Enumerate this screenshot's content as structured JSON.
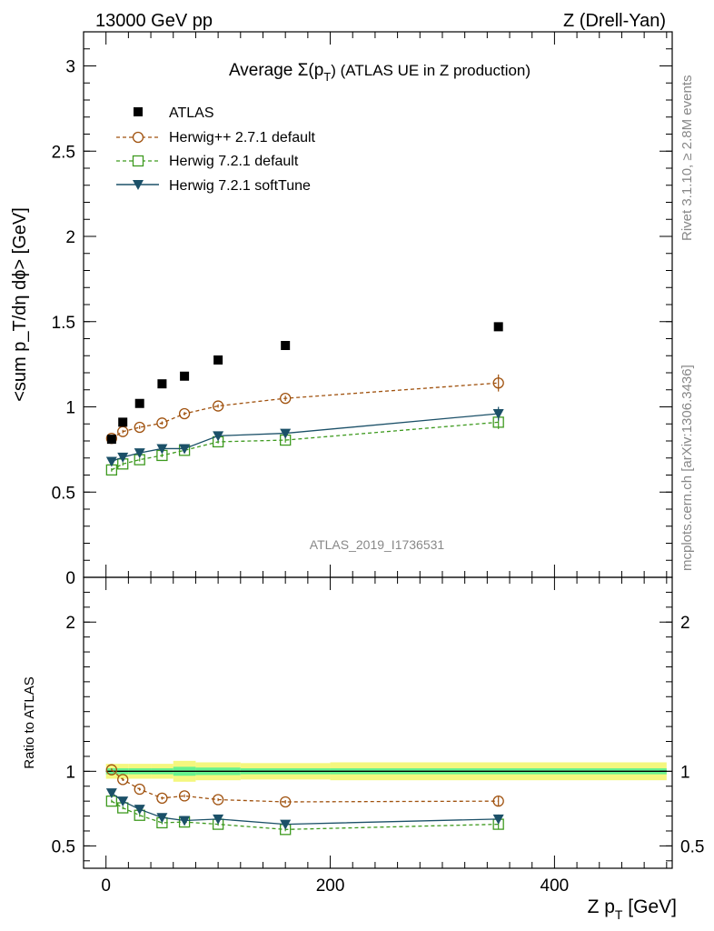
{
  "header": {
    "left": "13000 GeV pp",
    "right": "Z (Drell-Yan)"
  },
  "side_text": {
    "rivet": "Rivet 3.1.10, ≥ 2.8M events",
    "mcplots": "mcplots.cern.ch [arXiv:1306.3436]"
  },
  "colors": {
    "atlas": "#000000",
    "herwigpp": "#a0520f",
    "herwig721": "#3e9a1f",
    "softtune": "#1b5068",
    "band_inner": "#66f28f",
    "band_outer": "#f4f77e"
  },
  "chart_data": [
    {
      "type": "scatter",
      "panel": "main",
      "title": "Average Σ(p_T) (ATLAS UE in Z production)",
      "title_parts": {
        "lead": "Average ",
        "sigma": "Σ(p",
        "sub": "T",
        "tail": ") (ATLAS UE in Z production)"
      },
      "ylabel": "<sum p_T/dη dϕ> [GeV]",
      "watermark": "ATLAS_2019_I1736531",
      "xlim": [
        -20,
        505
      ],
      "ylim": [
        0,
        3.2
      ],
      "yticks": [
        0,
        0.5,
        1,
        1.5,
        2,
        2.5,
        3
      ],
      "x": [
        5,
        15,
        30,
        50,
        70,
        100,
        160,
        350
      ],
      "series": [
        {
          "name": "ATLAS",
          "style": "square",
          "values": [
            0.81,
            0.91,
            1.02,
            1.135,
            1.18,
            1.275,
            1.36,
            1.47
          ]
        },
        {
          "name": "Herwig++ 2.7.1 default",
          "style": "circle",
          "values": [
            0.815,
            0.855,
            0.88,
            0.905,
            0.96,
            1.005,
            1.05,
            1.14
          ],
          "err": [
            0.01,
            0.01,
            0.01,
            0.01,
            0.01,
            0.01,
            0.015,
            0.05
          ]
        },
        {
          "name": "Herwig 7.2.1 default",
          "style": "open-square",
          "values": [
            0.63,
            0.665,
            0.69,
            0.715,
            0.745,
            0.795,
            0.805,
            0.91
          ],
          "err": [
            0.01,
            0.01,
            0.01,
            0.01,
            0.01,
            0.01,
            0.015,
            0.04
          ]
        },
        {
          "name": "Herwig 7.2.1 softTune",
          "style": "triangle",
          "values": [
            0.68,
            0.705,
            0.73,
            0.755,
            0.755,
            0.83,
            0.845,
            0.96
          ],
          "err": [
            0.01,
            0.01,
            0.01,
            0.01,
            0.01,
            0.01,
            0.015,
            0.04
          ]
        }
      ]
    },
    {
      "type": "scatter",
      "panel": "ratio",
      "ylabel": "Ratio to ATLAS",
      "xlabel": "Z p_T [GeV]",
      "xlabel_parts": {
        "lead": "Z p",
        "sub": "T",
        "tail": " [GeV]"
      },
      "xlim": [
        -20,
        505
      ],
      "ylim": [
        0.35,
        2.3
      ],
      "yticks": [
        0.5,
        1,
        2
      ],
      "xticks": [
        0,
        200,
        400
      ],
      "band_edges": [
        0,
        10,
        20,
        40,
        60,
        80,
        120,
        200,
        500
      ],
      "band_inner": [
        0.02,
        0.02,
        0.02,
        0.02,
        0.03,
        0.025,
        0.02,
        0.02
      ],
      "band_outer": [
        0.05,
        0.05,
        0.05,
        0.05,
        0.07,
        0.06,
        0.055,
        0.06
      ],
      "x": [
        5,
        15,
        30,
        50,
        70,
        100,
        160,
        350
      ],
      "series": [
        {
          "name": "Herwig++ 2.7.1 default",
          "style": "circle",
          "values": [
            1.01,
            0.945,
            0.88,
            0.82,
            0.835,
            0.81,
            0.795,
            0.8
          ],
          "err": [
            0.01,
            0.01,
            0.01,
            0.01,
            0.01,
            0.01,
            0.012,
            0.03
          ]
        },
        {
          "name": "Herwig 7.2.1 default",
          "style": "open-square",
          "values": [
            0.8,
            0.755,
            0.705,
            0.655,
            0.66,
            0.645,
            0.61,
            0.645
          ],
          "err": [
            0.01,
            0.01,
            0.01,
            0.01,
            0.01,
            0.01,
            0.012,
            0.035
          ]
        },
        {
          "name": "Herwig 7.2.1 softTune",
          "style": "triangle",
          "values": [
            0.855,
            0.8,
            0.745,
            0.69,
            0.67,
            0.68,
            0.645,
            0.68
          ],
          "err": [
            0.01,
            0.01,
            0.01,
            0.01,
            0.01,
            0.01,
            0.012,
            0.03
          ]
        }
      ]
    }
  ]
}
